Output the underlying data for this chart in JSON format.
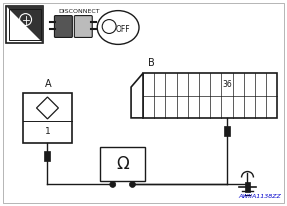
{
  "bg_color": "#ffffff",
  "watermark": "AWIIA1138ZZ",
  "label_B": "B",
  "label_A": "A",
  "label_36": "36",
  "connector_grid_cols": 12,
  "connector_grid_rows": 2
}
